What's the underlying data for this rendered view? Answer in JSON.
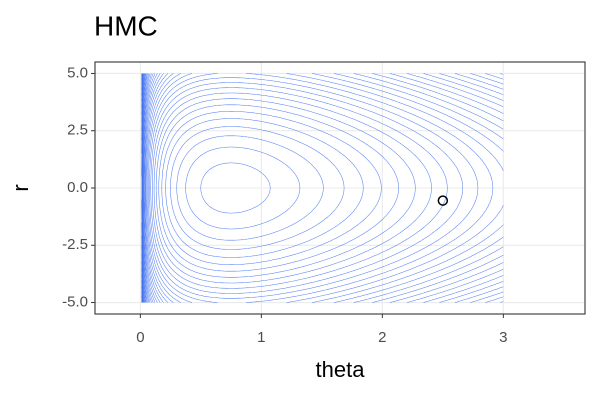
{
  "chart_data": {
    "type": "contour",
    "title": "HMC",
    "x_label": "theta",
    "y_label": "r",
    "xlim": [
      -0.375,
      3.675
    ],
    "ylim": [
      -5.5,
      5.5
    ],
    "xticks": [
      0,
      1,
      2,
      3
    ],
    "yticks": [
      {
        "value": 5,
        "label": "5.0"
      },
      2.5,
      {
        "value": 0,
        "label": "0.0"
      },
      -2.5,
      {
        "value": -5,
        "label": "-5.0"
      }
    ],
    "grid": true,
    "color": "#3b6cf0",
    "contour_xlim": [
      0.01,
      3
    ],
    "contour_ylim": [
      -5,
      5
    ],
    "levels": [
      0.6,
      1.6,
      2.6,
      3.6,
      4.6,
      5.6,
      6.6,
      7.6,
      8.6,
      9.6,
      10.6,
      11.6,
      12.6,
      13.6,
      14.6,
      15.6,
      16.6,
      17.6,
      18.6,
      19.6,
      20.6,
      21.6,
      22.6,
      23.6,
      24.6,
      25.6,
      26.6,
      27.6,
      28.6,
      29.6,
      30.6,
      31.6,
      32.6,
      33.6,
      34.6,
      35.6,
      36.6,
      37.6,
      38.6,
      39.6
    ],
    "points": {
      "x": [
        2.5
      ],
      "y": [
        -0.55
      ],
      "color": "#000000"
    }
  }
}
